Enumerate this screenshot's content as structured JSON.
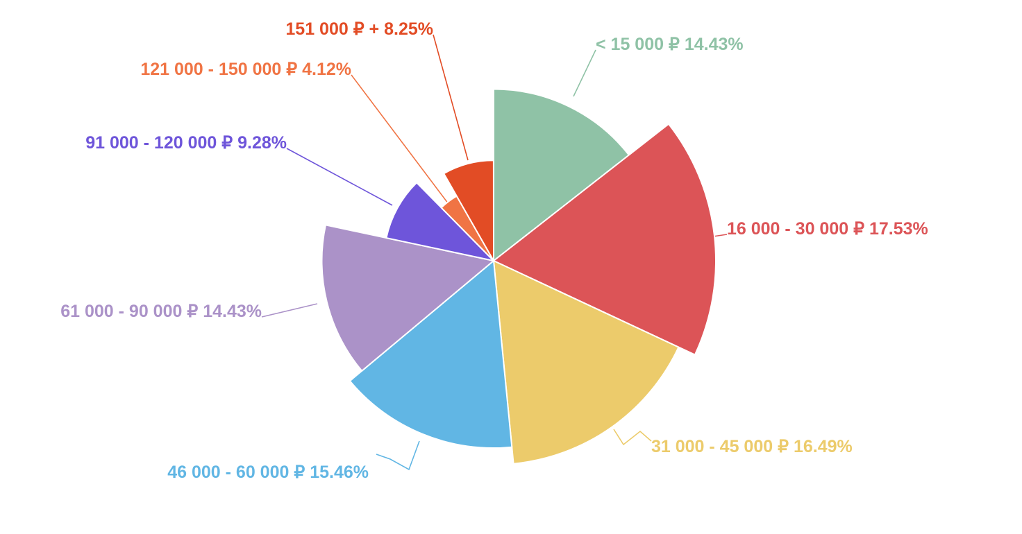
{
  "chart_data": {
    "type": "pie",
    "variant": "rose",
    "grid": false,
    "legend": "none",
    "slices": [
      {
        "name": "< 15 000 ₽",
        "percent": 14.43,
        "percent_label": "14.43%",
        "color": "#8fc2a6"
      },
      {
        "name": "16 000 - 30 000 ₽",
        "percent": 17.53,
        "percent_label": "17.53%",
        "color": "#dc5457"
      },
      {
        "name": "31 000 - 45 000 ₽",
        "percent": 16.49,
        "percent_label": "16.49%",
        "color": "#eccb6b"
      },
      {
        "name": "46 000 - 60 000 ₽",
        "percent": 15.46,
        "percent_label": "15.46%",
        "color": "#61b6e4"
      },
      {
        "name": "61 000 - 90 000 ₽",
        "percent": 14.43,
        "percent_label": "14.43%",
        "color": "#ab92c8"
      },
      {
        "name": "91 000 - 120 000 ₽",
        "percent": 9.28,
        "percent_label": "9.28%",
        "color": "#6e55da"
      },
      {
        "name": "121 000 - 150 000 ₽",
        "percent": 4.12,
        "percent_label": "4.12%",
        "color": "#f07444"
      },
      {
        "name": "151 000 ₽ +",
        "percent": 8.25,
        "percent_label": "8.25%",
        "color": "#e24c25"
      }
    ]
  }
}
